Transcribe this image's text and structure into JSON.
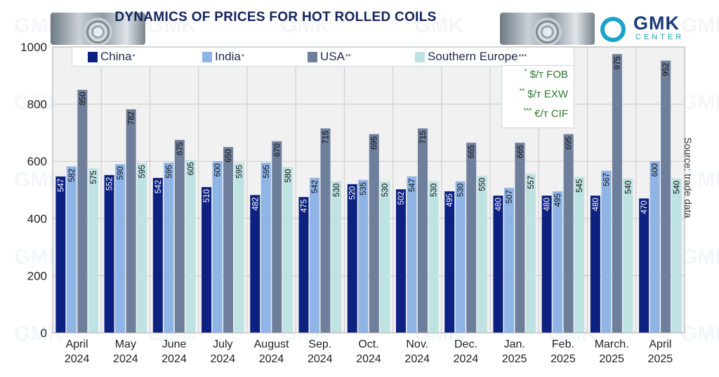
{
  "title": "DYNAMICS OF PRICES FOR HOT ROLLED COILS",
  "logo": {
    "name": "GMK",
    "sub": "CENTER"
  },
  "source": "Source: trade data",
  "units": [
    {
      "mark": "*",
      "text": "$/т FOB"
    },
    {
      "mark": "**",
      "text": "$/т EXW"
    },
    {
      "mark": "***",
      "text": "€/т CIF"
    }
  ],
  "colors": {
    "china": "#0d2280",
    "india": "#8fb4e6",
    "usa": "#6e7f9c",
    "southern_europe": "#bfe2e2",
    "units_text": "#2d7a2d",
    "title": "#13235c"
  },
  "chart_data": {
    "type": "bar",
    "title": "DYNAMICS OF PRICES FOR HOT ROLLED COILS",
    "xlabel": "",
    "ylabel": "",
    "ylim": [
      0,
      1000
    ],
    "yticks": [
      0,
      200,
      400,
      600,
      800,
      1000
    ],
    "grid": true,
    "legend_position": "top",
    "categories": [
      "April\n2024",
      "May\n2024",
      "June\n2024",
      "July\n2024",
      "August\n2024",
      "Sep.\n2024",
      "Oct.\n2024",
      "Nov.\n2024",
      "Dec.\n2024",
      "Jan.\n2025",
      "Feb.\n2025",
      "March.\n2025",
      "April\n2025"
    ],
    "series": [
      {
        "name": "China",
        "mark": "*",
        "color": "#0d2280",
        "values": [
          547,
          552,
          542,
          510,
          482,
          475,
          520,
          502,
          495,
          480,
          480,
          480,
          470
        ]
      },
      {
        "name": "India",
        "mark": "*",
        "color": "#8fb4e6",
        "values": [
          582,
          590,
          595,
          600,
          595,
          542,
          535,
          547,
          530,
          507,
          495,
          567,
          600
        ]
      },
      {
        "name": "USA",
        "mark": "**",
        "color": "#6e7f9c",
        "values": [
          850,
          782,
          675,
          650,
          670,
          715,
          695,
          715,
          665,
          665,
          695,
          975,
          952
        ]
      },
      {
        "name": "Southern Europe",
        "mark": "***",
        "color": "#bfe2e2",
        "values": [
          575,
          595,
          605,
          595,
          580,
          530,
          530,
          530,
          550,
          557,
          545,
          540,
          540
        ]
      }
    ]
  }
}
